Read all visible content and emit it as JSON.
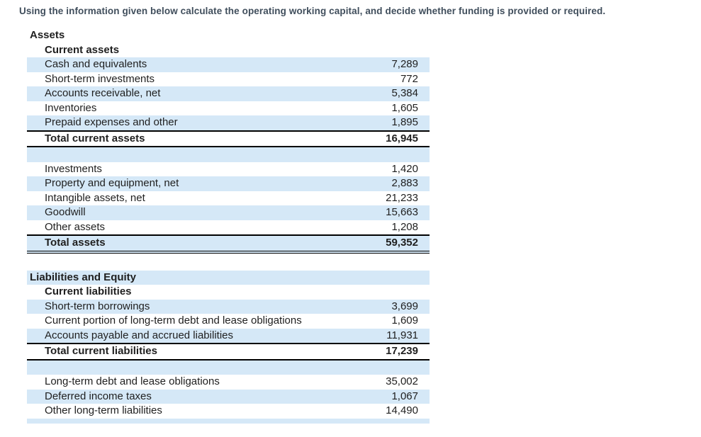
{
  "prompt": {
    "text": "Using the information given below calculate the operating working capital, and decide whether funding is provided or required."
  },
  "colors": {
    "row_highlight": "#d5e8f7",
    "prompt_text": "#404e5c",
    "table_text": "#1f1f1f",
    "rule": "#000000"
  },
  "balance_sheet": {
    "rows": [
      {
        "label": "Assets",
        "value": ""
      },
      {
        "label": "Current assets",
        "value": ""
      },
      {
        "label": "Cash and equivalents",
        "value": "7,289"
      },
      {
        "label": "Short-term investments",
        "value": "772"
      },
      {
        "label": "Accounts receivable, net",
        "value": "5,384"
      },
      {
        "label": "Inventories",
        "value": "1,605"
      },
      {
        "label": "Prepaid expenses and other",
        "value": "1,895"
      },
      {
        "label": "Total current assets",
        "value": "16,945"
      },
      {
        "label": "",
        "value": ""
      },
      {
        "label": "Investments",
        "value": "1,420"
      },
      {
        "label": "Property and equipment, net",
        "value": "2,883"
      },
      {
        "label": "Intangible assets, net",
        "value": "21,233"
      },
      {
        "label": "Goodwill",
        "value": "15,663"
      },
      {
        "label": "Other assets",
        "value": "1,208"
      },
      {
        "label": "Total assets",
        "value": "59,352"
      },
      {
        "label": "",
        "value": ""
      },
      {
        "label": "Liabilities and Equity",
        "value": ""
      },
      {
        "label": "Current liabilities",
        "value": ""
      },
      {
        "label": "Short-term borrowings",
        "value": "3,699"
      },
      {
        "label": "Current portion of long-term debt and lease obligations",
        "value": "1,609"
      },
      {
        "label": "Accounts payable and accrued liabilities",
        "value": "11,931"
      },
      {
        "label": "Total current liabilities",
        "value": "17,239"
      },
      {
        "label": "",
        "value": ""
      },
      {
        "label": "Long-term debt and lease obligations",
        "value": "35,002"
      },
      {
        "label": "Deferred income taxes",
        "value": "1,067"
      },
      {
        "label": "Other long-term liabilities",
        "value": "14,490"
      }
    ]
  }
}
